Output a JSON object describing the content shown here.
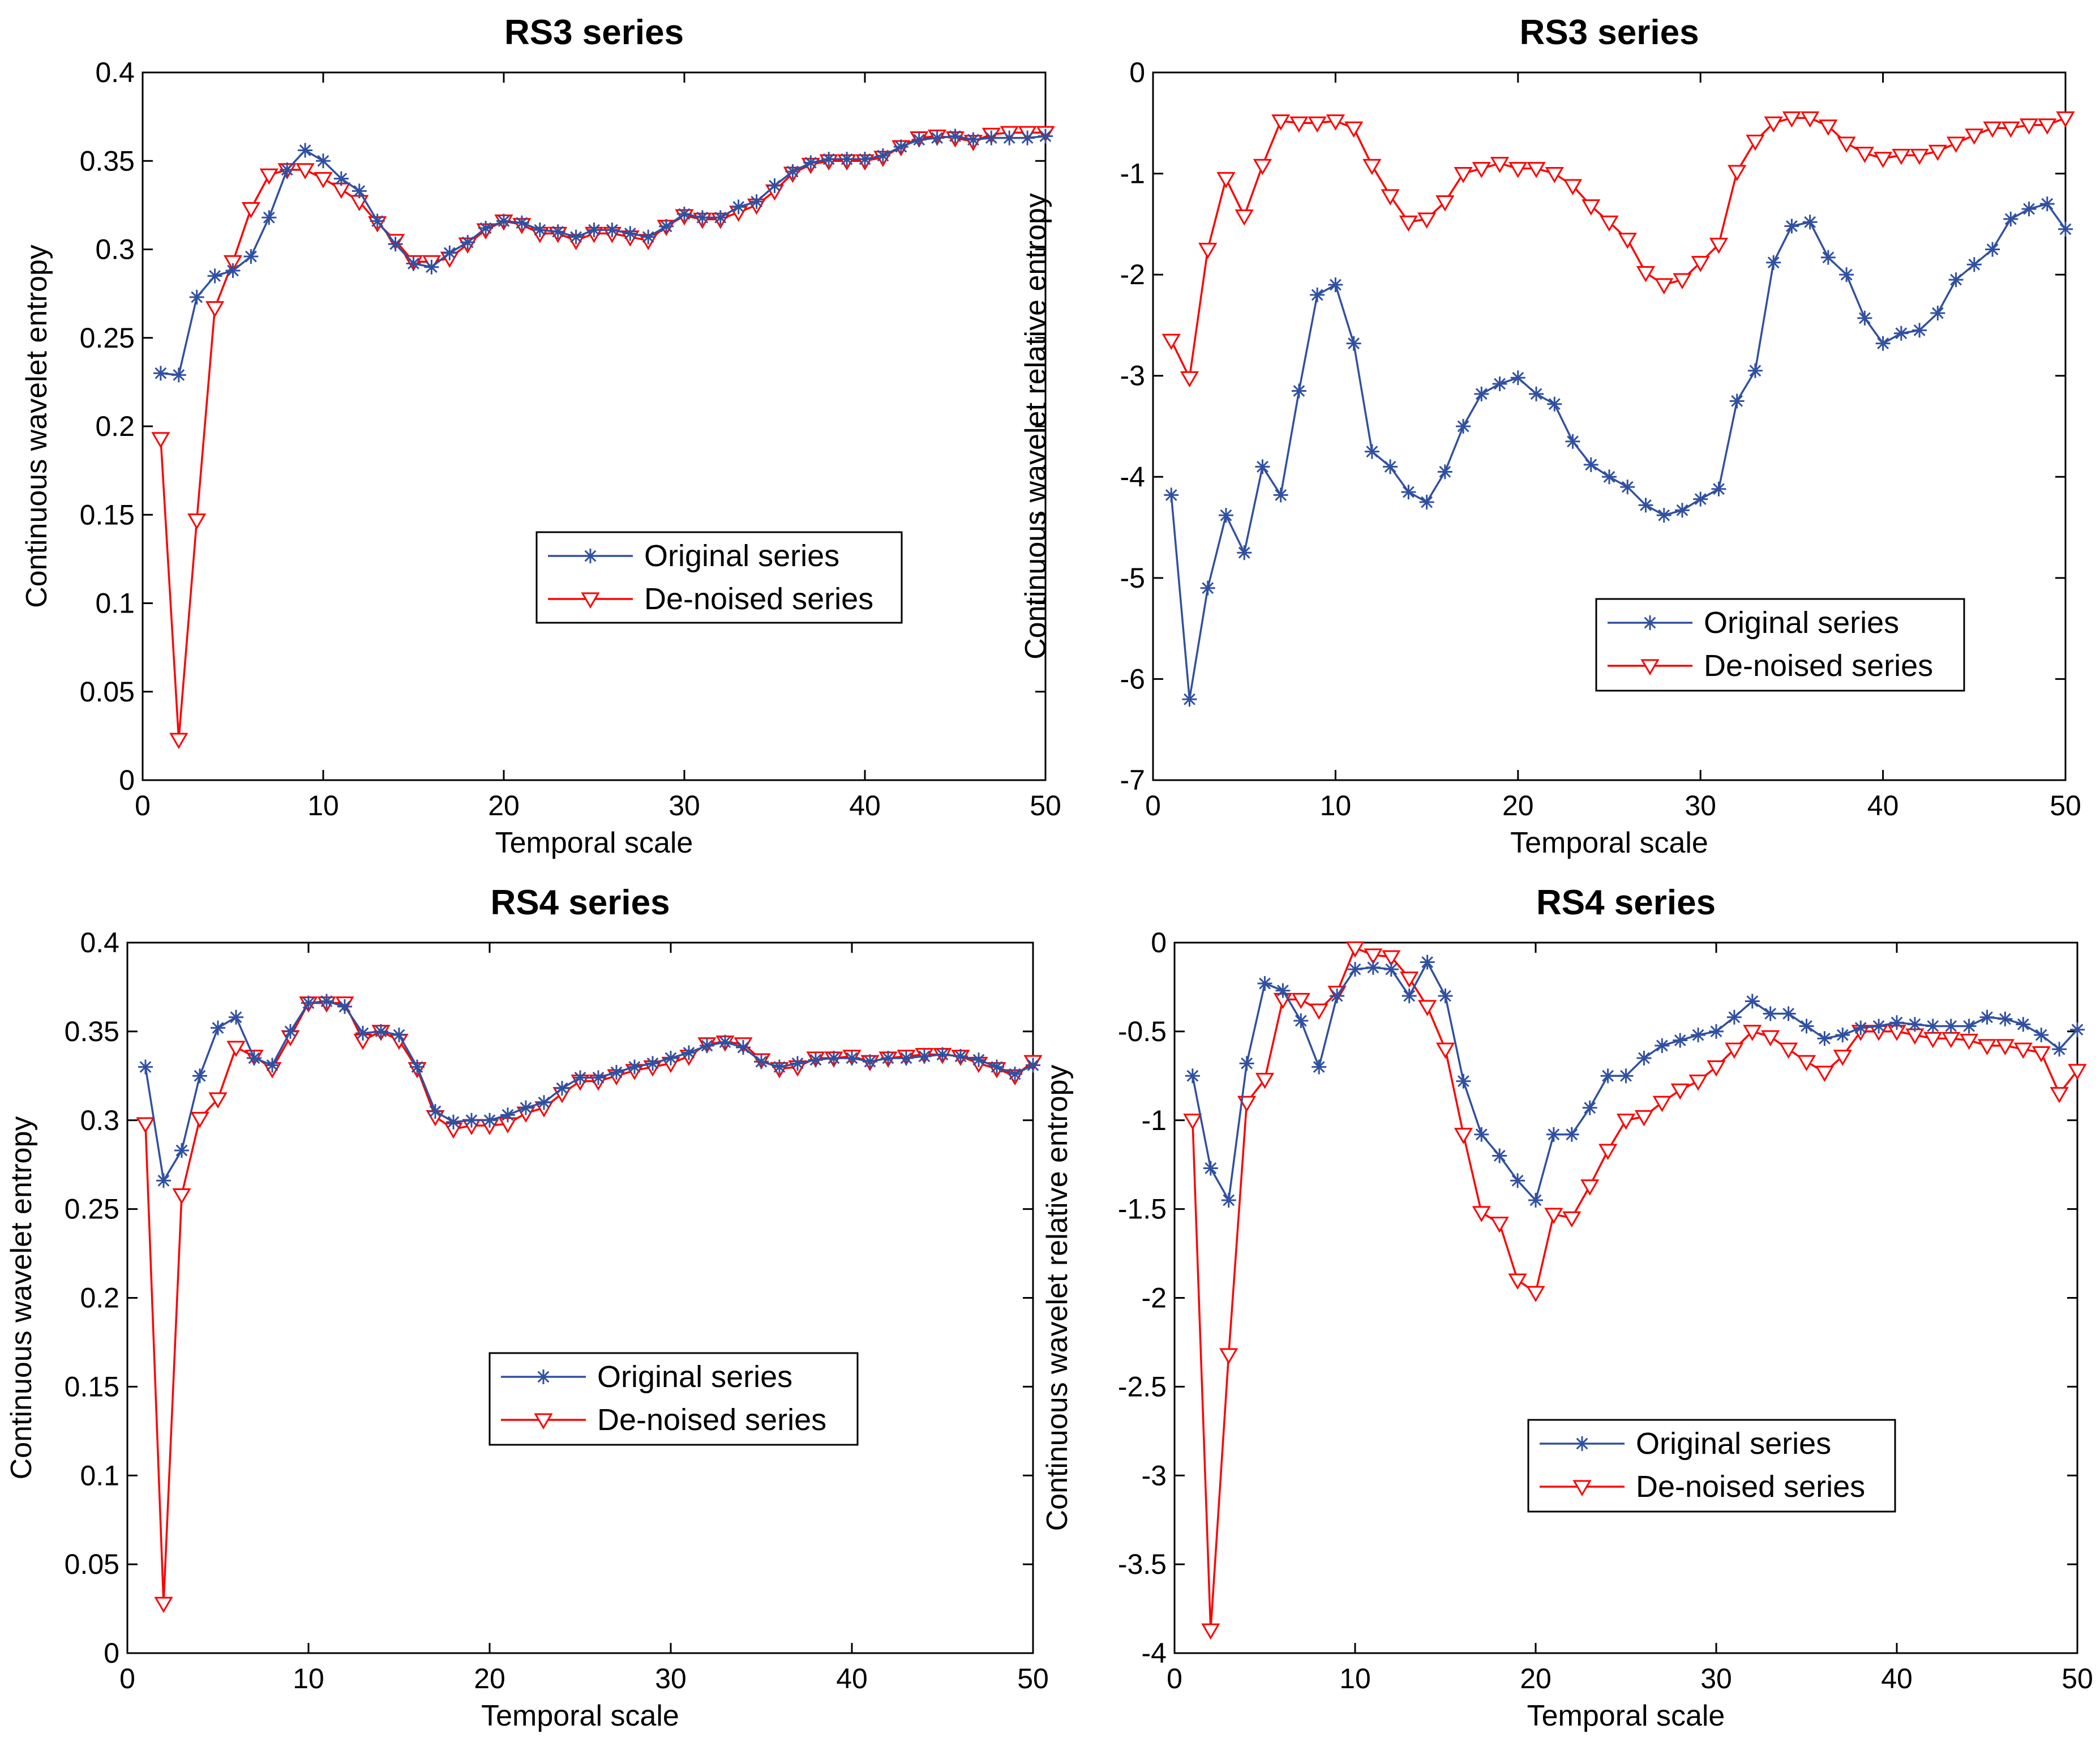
{
  "colors": {
    "original": "#3050a0",
    "denoised": "#ff0000",
    "axis": "#000000",
    "background": "#ffffff"
  },
  "chart_data": [
    {
      "type": "line",
      "title": "RS3 series",
      "xlabel": "Temporal scale",
      "ylabel": "Continuous wavelet entropy",
      "xlim": [
        0,
        50
      ],
      "ylim": [
        0,
        0.4
      ],
      "xticks": [
        "0",
        "10",
        "20",
        "30",
        "40",
        "50"
      ],
      "yticks": [
        "0",
        "0.05",
        "0.1",
        "0.15",
        "0.2",
        "0.25",
        "0.3",
        "0.35",
        "0.4"
      ],
      "legend_position": "center-right",
      "x": [
        1,
        2,
        3,
        4,
        5,
        6,
        7,
        8,
        9,
        10,
        11,
        12,
        13,
        14,
        15,
        16,
        17,
        18,
        19,
        20,
        21,
        22,
        23,
        24,
        25,
        26,
        27,
        28,
        29,
        30,
        31,
        32,
        33,
        34,
        35,
        36,
        37,
        38,
        39,
        40,
        41,
        42,
        43,
        44,
        45,
        46,
        47,
        48,
        49,
        50
      ],
      "series": [
        {
          "name": "Original series",
          "marker": "star",
          "values": [
            0.23,
            0.229,
            0.273,
            0.285,
            0.288,
            0.296,
            0.318,
            0.345,
            0.356,
            0.35,
            0.34,
            0.333,
            0.316,
            0.303,
            0.292,
            0.29,
            0.298,
            0.304,
            0.312,
            0.316,
            0.315,
            0.311,
            0.31,
            0.307,
            0.311,
            0.311,
            0.309,
            0.307,
            0.313,
            0.32,
            0.318,
            0.318,
            0.324,
            0.327,
            0.336,
            0.344,
            0.349,
            0.351,
            0.351,
            0.351,
            0.353,
            0.358,
            0.362,
            0.363,
            0.364,
            0.362,
            0.363,
            0.363,
            0.363,
            0.364
          ]
        },
        {
          "name": "De-noised series",
          "marker": "triangle",
          "values": [
            0.193,
            0.023,
            0.147,
            0.267,
            0.293,
            0.323,
            0.342,
            0.345,
            0.345,
            0.34,
            0.334,
            0.327,
            0.315,
            0.305,
            0.293,
            0.293,
            0.295,
            0.303,
            0.311,
            0.316,
            0.314,
            0.309,
            0.309,
            0.305,
            0.309,
            0.309,
            0.307,
            0.305,
            0.313,
            0.319,
            0.317,
            0.317,
            0.321,
            0.325,
            0.333,
            0.343,
            0.348,
            0.35,
            0.35,
            0.35,
            0.352,
            0.358,
            0.363,
            0.364,
            0.363,
            0.361,
            0.365,
            0.366,
            0.366,
            0.366
          ]
        }
      ]
    },
    {
      "type": "line",
      "title": "RS3 series",
      "xlabel": "Temporal scale",
      "ylabel": "Continuous wavelet relative entropy",
      "xlim": [
        0,
        50
      ],
      "ylim": [
        -7,
        0
      ],
      "xticks": [
        "0",
        "10",
        "20",
        "30",
        "40",
        "50"
      ],
      "yticks": [
        "-7",
        "-6",
        "-5",
        "-4",
        "-3",
        "-2",
        "-1",
        "0"
      ],
      "legend_position": "lower-right",
      "x": [
        1,
        2,
        3,
        4,
        5,
        6,
        7,
        8,
        9,
        10,
        11,
        12,
        13,
        14,
        15,
        16,
        17,
        18,
        19,
        20,
        21,
        22,
        23,
        24,
        25,
        26,
        27,
        28,
        29,
        30,
        31,
        32,
        33,
        34,
        35,
        36,
        37,
        38,
        39,
        40,
        41,
        42,
        43,
        44,
        45,
        46,
        47,
        48,
        49,
        50
      ],
      "series": [
        {
          "name": "Original series",
          "marker": "star",
          "values": [
            -4.18,
            -6.2,
            -5.1,
            -4.38,
            -4.75,
            -3.9,
            -4.18,
            -3.15,
            -2.2,
            -2.1,
            -2.68,
            -3.75,
            -3.9,
            -4.15,
            -4.25,
            -3.95,
            -3.5,
            -3.18,
            -3.08,
            -3.02,
            -3.18,
            -3.28,
            -3.65,
            -3.88,
            -4.0,
            -4.1,
            -4.28,
            -4.38,
            -4.33,
            -4.22,
            -4.12,
            -3.25,
            -2.95,
            -1.88,
            -1.52,
            -1.48,
            -1.83,
            -2.0,
            -2.43,
            -2.68,
            -2.58,
            -2.55,
            -2.38,
            -2.05,
            -1.9,
            -1.75,
            -1.45,
            -1.35,
            -1.3,
            -1.55
          ]
        },
        {
          "name": "De-noised series",
          "marker": "triangle",
          "values": [
            -2.65,
            -3.02,
            -1.75,
            -1.05,
            -1.42,
            -0.92,
            -0.48,
            -0.5,
            -0.5,
            -0.48,
            -0.55,
            -0.92,
            -1.22,
            -1.48,
            -1.45,
            -1.28,
            -1.0,
            -0.95,
            -0.9,
            -0.95,
            -0.95,
            -1.0,
            -1.12,
            -1.32,
            -1.48,
            -1.65,
            -1.98,
            -2.1,
            -2.05,
            -1.88,
            -1.7,
            -0.98,
            -0.68,
            -0.5,
            -0.45,
            -0.45,
            -0.53,
            -0.7,
            -0.8,
            -0.85,
            -0.82,
            -0.82,
            -0.78,
            -0.7,
            -0.62,
            -0.55,
            -0.55,
            -0.52,
            -0.52,
            -0.45
          ]
        }
      ]
    },
    {
      "type": "line",
      "title": "RS4 series",
      "xlabel": "Temporal scale",
      "ylabel": "Continuous wavelet entropy",
      "xlim": [
        0,
        50
      ],
      "ylim": [
        0,
        0.4
      ],
      "xticks": [
        "0",
        "10",
        "20",
        "30",
        "40",
        "50"
      ],
      "yticks": [
        "0",
        "0.05",
        "0.1",
        "0.15",
        "0.2",
        "0.25",
        "0.3",
        "0.35",
        "0.4"
      ],
      "legend_position": "center",
      "x": [
        1,
        2,
        3,
        4,
        5,
        6,
        7,
        8,
        9,
        10,
        11,
        12,
        13,
        14,
        15,
        16,
        17,
        18,
        19,
        20,
        21,
        22,
        23,
        24,
        25,
        26,
        27,
        28,
        29,
        30,
        31,
        32,
        33,
        34,
        35,
        36,
        37,
        38,
        39,
        40,
        41,
        42,
        43,
        44,
        45,
        46,
        47,
        48,
        49,
        50
      ],
      "series": [
        {
          "name": "Original series",
          "marker": "star",
          "values": [
            0.33,
            0.266,
            0.283,
            0.325,
            0.352,
            0.358,
            0.335,
            0.331,
            0.35,
            0.366,
            0.367,
            0.364,
            0.349,
            0.35,
            0.348,
            0.33,
            0.305,
            0.299,
            0.3,
            0.3,
            0.303,
            0.307,
            0.31,
            0.318,
            0.324,
            0.324,
            0.327,
            0.33,
            0.332,
            0.335,
            0.338,
            0.342,
            0.344,
            0.341,
            0.333,
            0.33,
            0.332,
            0.334,
            0.335,
            0.335,
            0.333,
            0.335,
            0.335,
            0.336,
            0.337,
            0.336,
            0.334,
            0.33,
            0.326,
            0.331
          ]
        },
        {
          "name": "De-noised series",
          "marker": "triangle",
          "values": [
            0.298,
            0.028,
            0.258,
            0.301,
            0.312,
            0.341,
            0.336,
            0.329,
            0.347,
            0.366,
            0.366,
            0.366,
            0.345,
            0.35,
            0.345,
            0.329,
            0.302,
            0.295,
            0.297,
            0.297,
            0.298,
            0.304,
            0.307,
            0.315,
            0.322,
            0.322,
            0.325,
            0.328,
            0.33,
            0.332,
            0.336,
            0.343,
            0.344,
            0.343,
            0.334,
            0.329,
            0.33,
            0.335,
            0.335,
            0.336,
            0.333,
            0.335,
            0.336,
            0.337,
            0.337,
            0.336,
            0.332,
            0.329,
            0.325,
            0.333
          ]
        }
      ]
    },
    {
      "type": "line",
      "title": "RS4 series",
      "xlabel": "Temporal scale",
      "ylabel": "Continuous wavelet relative entropy",
      "xlim": [
        0,
        50
      ],
      "ylim": [
        -4,
        0
      ],
      "xticks": [
        "0",
        "10",
        "20",
        "30",
        "40",
        "50"
      ],
      "yticks": [
        "-4",
        "-3.5",
        "-3",
        "-2.5",
        "-2",
        "-1.5",
        "-1",
        "-0.5",
        "0"
      ],
      "legend_position": "lower-right",
      "x": [
        1,
        2,
        3,
        4,
        5,
        6,
        7,
        8,
        9,
        10,
        11,
        12,
        13,
        14,
        15,
        16,
        17,
        18,
        19,
        20,
        21,
        22,
        23,
        24,
        25,
        26,
        27,
        28,
        29,
        30,
        31,
        32,
        33,
        34,
        35,
        36,
        37,
        38,
        39,
        40,
        41,
        42,
        43,
        44,
        45,
        46,
        47,
        48,
        49,
        50
      ],
      "series": [
        {
          "name": "Original series",
          "marker": "star",
          "values": [
            -0.75,
            -1.27,
            -1.45,
            -0.68,
            -0.23,
            -0.27,
            -0.44,
            -0.7,
            -0.3,
            -0.15,
            -0.14,
            -0.15,
            -0.3,
            -0.11,
            -0.3,
            -0.78,
            -1.08,
            -1.2,
            -1.34,
            -1.45,
            -1.08,
            -1.08,
            -0.93,
            -0.75,
            -0.75,
            -0.65,
            -0.58,
            -0.55,
            -0.52,
            -0.5,
            -0.42,
            -0.33,
            -0.4,
            -0.4,
            -0.47,
            -0.54,
            -0.52,
            -0.48,
            -0.47,
            -0.45,
            -0.46,
            -0.47,
            -0.47,
            -0.47,
            -0.42,
            -0.43,
            -0.46,
            -0.52,
            -0.6,
            -0.49
          ]
        },
        {
          "name": "De-noised series",
          "marker": "triangle",
          "values": [
            -1.0,
            -3.87,
            -2.32,
            -0.9,
            -0.77,
            -0.32,
            -0.32,
            -0.38,
            -0.28,
            -0.03,
            -0.07,
            -0.08,
            -0.2,
            -0.36,
            -0.6,
            -1.08,
            -1.52,
            -1.58,
            -1.9,
            -1.97,
            -1.53,
            -1.55,
            -1.37,
            -1.17,
            -1.0,
            -0.98,
            -0.9,
            -0.83,
            -0.78,
            -0.7,
            -0.6,
            -0.5,
            -0.53,
            -0.6,
            -0.67,
            -0.73,
            -0.64,
            -0.5,
            -0.5,
            -0.5,
            -0.52,
            -0.54,
            -0.54,
            -0.55,
            -0.58,
            -0.58,
            -0.6,
            -0.62,
            -0.85,
            -0.72
          ]
        }
      ]
    }
  ]
}
